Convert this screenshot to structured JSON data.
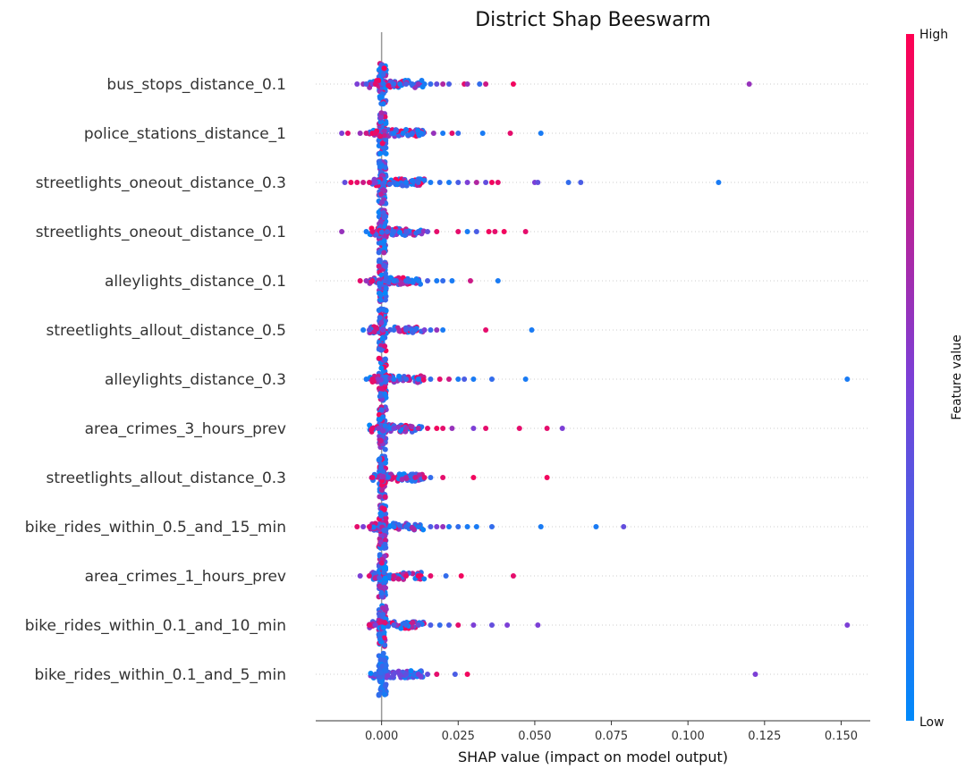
{
  "chart_data": {
    "type": "scatter",
    "subtype": "beeswarm",
    "title": "District Shap Beeswarm",
    "xlabel": "SHAP value (impact on model output)",
    "xlim": [
      -0.0215,
      0.1595
    ],
    "xticks": [
      "0.000",
      "0.025",
      "0.050",
      "0.075",
      "0.100",
      "0.125",
      "0.150"
    ],
    "xtick_values": [
      0,
      0.025,
      0.05,
      0.075,
      0.1,
      0.125,
      0.15
    ],
    "grid": false,
    "colorbar": {
      "label": "Feature value",
      "high_label": "High",
      "low_label": "Low",
      "low_color": "#008afb",
      "mid_color": "#7c3fd6",
      "high_color": "#ff0051"
    },
    "features": [
      {
        "name": "bus_stops_distance_0.1",
        "points": [
          [
            -0.008,
            0.5
          ],
          [
            -0.006,
            0.6
          ],
          [
            -0.005,
            0.3
          ],
          [
            -0.003,
            0.5
          ],
          [
            -0.002,
            0.9
          ],
          [
            0.004,
            0.2
          ],
          [
            0.006,
            0.1
          ],
          [
            0.008,
            0.3
          ],
          [
            0.01,
            0.2
          ],
          [
            0.012,
            0.6
          ],
          [
            0.014,
            0.1
          ],
          [
            0.016,
            0.2
          ],
          [
            0.018,
            0.4
          ],
          [
            0.02,
            0.7
          ],
          [
            0.022,
            0.3
          ],
          [
            0.027,
            0.9
          ],
          [
            0.028,
            0.6
          ],
          [
            0.032,
            0.2
          ],
          [
            0.034,
            0.8
          ],
          [
            0.043,
            0.95
          ],
          [
            0.12,
            0.6
          ]
        ],
        "mixed_core": true
      },
      {
        "name": "police_stations_distance_1",
        "points": [
          [
            -0.013,
            0.5
          ],
          [
            -0.011,
            0.9
          ],
          [
            -0.007,
            0.6
          ],
          [
            -0.005,
            0.8
          ],
          [
            -0.003,
            0.95
          ],
          [
            -0.002,
            0.9
          ],
          [
            0.004,
            0.1
          ],
          [
            0.007,
            0.1
          ],
          [
            0.01,
            0.2
          ],
          [
            0.013,
            0.1
          ],
          [
            0.017,
            0.6
          ],
          [
            0.02,
            0.1
          ],
          [
            0.023,
            0.9
          ],
          [
            0.025,
            0.2
          ],
          [
            0.033,
            0.1
          ],
          [
            0.042,
            0.9
          ],
          [
            0.052,
            0.1
          ]
        ],
        "mixed_core": true
      },
      {
        "name": "streetlights_oneout_distance_0.3",
        "points": [
          [
            -0.012,
            0.4
          ],
          [
            -0.01,
            0.95
          ],
          [
            -0.008,
            0.9
          ],
          [
            -0.006,
            0.8
          ],
          [
            -0.004,
            0.9
          ],
          [
            -0.002,
            0.5
          ],
          [
            0.004,
            0.2
          ],
          [
            0.008,
            0.1
          ],
          [
            0.012,
            0.2
          ],
          [
            0.016,
            0.1
          ],
          [
            0.019,
            0.2
          ],
          [
            0.022,
            0.1
          ],
          [
            0.025,
            0.3
          ],
          [
            0.028,
            0.5
          ],
          [
            0.031,
            0.7
          ],
          [
            0.034,
            0.4
          ],
          [
            0.036,
            0.95
          ],
          [
            0.038,
            0.9
          ],
          [
            0.05,
            0.5
          ],
          [
            0.051,
            0.4
          ],
          [
            0.061,
            0.2
          ],
          [
            0.065,
            0.3
          ],
          [
            0.11,
            0.1
          ]
        ],
        "mixed_core": true
      },
      {
        "name": "streetlights_oneout_distance_0.1",
        "points": [
          [
            -0.013,
            0.6
          ],
          [
            -0.005,
            0.1
          ],
          [
            -0.003,
            0.9
          ],
          [
            0.004,
            0.2
          ],
          [
            0.008,
            0.3
          ],
          [
            0.012,
            0.2
          ],
          [
            0.015,
            0.4
          ],
          [
            0.018,
            0.9
          ],
          [
            0.025,
            0.9
          ],
          [
            0.028,
            0.1
          ],
          [
            0.031,
            0.3
          ],
          [
            0.035,
            0.95
          ],
          [
            0.037,
            0.9
          ],
          [
            0.04,
            0.95
          ],
          [
            0.047,
            0.9
          ]
        ],
        "mixed_core": true
      },
      {
        "name": "alleylights_distance_0.1",
        "points": [
          [
            -0.007,
            0.9
          ],
          [
            -0.005,
            0.6
          ],
          [
            -0.003,
            0.9
          ],
          [
            0.004,
            0.1
          ],
          [
            0.008,
            0.2
          ],
          [
            0.012,
            0.1
          ],
          [
            0.015,
            0.3
          ],
          [
            0.018,
            0.1
          ],
          [
            0.02,
            0.2
          ],
          [
            0.023,
            0.1
          ],
          [
            0.029,
            0.8
          ],
          [
            0.038,
            0.1
          ]
        ],
        "mixed_core": true
      },
      {
        "name": "streetlights_allout_distance_0.5",
        "points": [
          [
            -0.006,
            0.1
          ],
          [
            -0.004,
            0.4
          ],
          [
            0.004,
            0.2
          ],
          [
            0.008,
            0.3
          ],
          [
            0.011,
            0.2
          ],
          [
            0.014,
            0.5
          ],
          [
            0.016,
            0.2
          ],
          [
            0.018,
            0.6
          ],
          [
            0.02,
            0.1
          ],
          [
            0.034,
            0.9
          ],
          [
            0.049,
            0.1
          ]
        ],
        "mixed_core": true
      },
      {
        "name": "alleylights_distance_0.3",
        "points": [
          [
            -0.005,
            0.1
          ],
          [
            -0.003,
            0.9
          ],
          [
            0.004,
            0.1
          ],
          [
            0.008,
            0.2
          ],
          [
            0.012,
            0.1
          ],
          [
            0.016,
            0.2
          ],
          [
            0.019,
            0.9
          ],
          [
            0.022,
            0.8
          ],
          [
            0.025,
            0.1
          ],
          [
            0.027,
            0.3
          ],
          [
            0.03,
            0.1
          ],
          [
            0.036,
            0.2
          ],
          [
            0.047,
            0.1
          ],
          [
            0.152,
            0.1
          ]
        ],
        "mixed_core": true
      },
      {
        "name": "area_crimes_3_hours_prev",
        "points": [
          [
            -0.003,
            0.9
          ],
          [
            0.004,
            0.5
          ],
          [
            0.008,
            0.6
          ],
          [
            0.012,
            0.7
          ],
          [
            0.015,
            0.9
          ],
          [
            0.018,
            0.95
          ],
          [
            0.02,
            0.9
          ],
          [
            0.023,
            0.6
          ],
          [
            0.03,
            0.5
          ],
          [
            0.034,
            0.9
          ],
          [
            0.045,
            0.9
          ],
          [
            0.054,
            0.9
          ],
          [
            0.059,
            0.5
          ]
        ],
        "mixed_core": true
      },
      {
        "name": "streetlights_allout_distance_0.3",
        "points": [
          [
            -0.003,
            0.9
          ],
          [
            0.004,
            0.9
          ],
          [
            0.008,
            0.7
          ],
          [
            0.011,
            0.8
          ],
          [
            0.014,
            0.9
          ],
          [
            0.016,
            0.2
          ],
          [
            0.02,
            0.9
          ],
          [
            0.03,
            0.95
          ],
          [
            0.054,
            0.95
          ]
        ],
        "mixed_core": true
      },
      {
        "name": "bike_rides_within_0.5_and_15_min",
        "points": [
          [
            -0.008,
            0.9
          ],
          [
            -0.006,
            0.5
          ],
          [
            -0.004,
            0.9
          ],
          [
            0.004,
            0.1
          ],
          [
            0.008,
            0.2
          ],
          [
            0.012,
            0.1
          ],
          [
            0.016,
            0.3
          ],
          [
            0.018,
            0.5
          ],
          [
            0.02,
            0.6
          ],
          [
            0.022,
            0.1
          ],
          [
            0.025,
            0.2
          ],
          [
            0.028,
            0.1
          ],
          [
            0.031,
            0.1
          ],
          [
            0.036,
            0.2
          ],
          [
            0.052,
            0.1
          ],
          [
            0.07,
            0.1
          ],
          [
            0.079,
            0.4
          ]
        ],
        "mixed_core": true
      },
      {
        "name": "area_crimes_1_hours_prev",
        "points": [
          [
            -0.007,
            0.5
          ],
          [
            -0.004,
            0.9
          ],
          [
            0.004,
            0.8
          ],
          [
            0.008,
            0.9
          ],
          [
            0.012,
            0.95
          ],
          [
            0.016,
            0.9
          ],
          [
            0.021,
            0.2
          ],
          [
            0.026,
            0.95
          ],
          [
            0.043,
            0.9
          ]
        ],
        "mixed_core": true
      },
      {
        "name": "bike_rides_within_0.1_and_10_min",
        "points": [
          [
            -0.004,
            0.9
          ],
          [
            -0.002,
            0.5
          ],
          [
            0.004,
            0.3
          ],
          [
            0.008,
            0.2
          ],
          [
            0.012,
            0.4
          ],
          [
            0.016,
            0.3
          ],
          [
            0.019,
            0.2
          ],
          [
            0.022,
            0.3
          ],
          [
            0.025,
            0.9
          ],
          [
            0.03,
            0.5
          ],
          [
            0.036,
            0.4
          ],
          [
            0.041,
            0.5
          ],
          [
            0.051,
            0.5
          ],
          [
            0.152,
            0.5
          ]
        ],
        "mixed_core": true
      },
      {
        "name": "bike_rides_within_0.1_and_5_min",
        "points": [
          [
            -0.002,
            0.2
          ],
          [
            0.004,
            0.4
          ],
          [
            0.008,
            0.4
          ],
          [
            0.012,
            0.5
          ],
          [
            0.015,
            0.4
          ],
          [
            0.018,
            0.9
          ],
          [
            0.024,
            0.3
          ],
          [
            0.028,
            0.95
          ],
          [
            0.122,
            0.5
          ]
        ],
        "mixed_core": false
      }
    ]
  }
}
